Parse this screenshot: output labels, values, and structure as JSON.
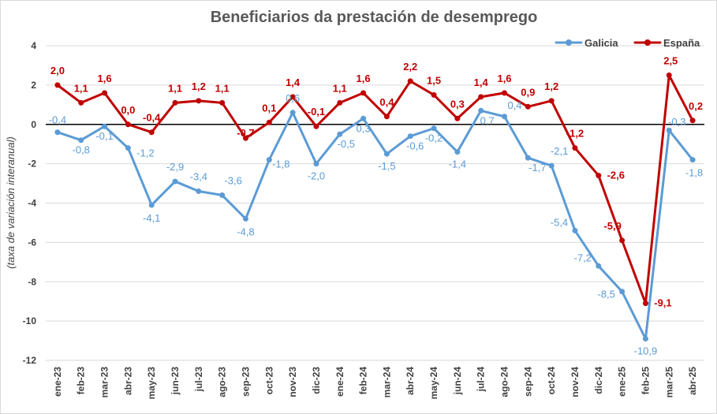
{
  "chart_data": {
    "type": "line",
    "title": "Beneficiarios da prestación de desemprego",
    "ylabel": "(taxa de variación interanual)",
    "xlabel": "",
    "ylim": [
      -12,
      4
    ],
    "yticks": [
      4,
      2,
      0,
      -2,
      -4,
      -6,
      -8,
      -10,
      -12
    ],
    "ytick_labels": [
      "4",
      "2",
      "0",
      "-2",
      "-4",
      "-6",
      "-8",
      "-10",
      "-12"
    ],
    "grid": true,
    "legend_position": "top-right",
    "categories": [
      "ene-23",
      "feb-23",
      "mar-23",
      "abr-23",
      "may-23",
      "jun-23",
      "jul-23",
      "ago-23",
      "sep-23",
      "oct-23",
      "nov-23",
      "dic-23",
      "ene-24",
      "feb-24",
      "mar-24",
      "abr-24",
      "may-24",
      "jun-24",
      "jul-24",
      "ago-24",
      "sep-24",
      "oct-24",
      "nov-24",
      "dic-24",
      "ene-25",
      "feb-25",
      "mar-25",
      "abr-25"
    ],
    "series": [
      {
        "name": "Galicia",
        "color": "#5b9bd5",
        "values": [
          -0.4,
          -0.8,
          -0.1,
          -1.2,
          -4.1,
          -2.9,
          -3.4,
          -3.6,
          -4.8,
          -1.8,
          0.6,
          -2.0,
          -0.5,
          0.3,
          -1.5,
          -0.6,
          -0.2,
          -1.4,
          0.7,
          0.4,
          -1.7,
          -2.1,
          -5.4,
          -7.2,
          -8.5,
          -10.9,
          -0.3,
          -1.8
        ],
        "labels": [
          "-0,4",
          "-0,8",
          "-0,1",
          "-1,2",
          "-4,1",
          "-2,9",
          "-3,4",
          "-3,6",
          "-4,8",
          "-1,8",
          "0,6",
          "-2,0",
          "-0,5",
          "0,3",
          "-1,5",
          "-0,6",
          "-0,2",
          "-1,4",
          "0,7",
          "0,4",
          "-1,7",
          "-2,1",
          "-5,4",
          "-7,2",
          "-8,5",
          "-10,9",
          "-0,3",
          "-1,8"
        ]
      },
      {
        "name": "España",
        "color": "#c00000",
        "values": [
          2.0,
          1.1,
          1.6,
          0.0,
          -0.4,
          1.1,
          1.2,
          1.1,
          -0.7,
          0.1,
          1.4,
          -0.1,
          1.1,
          1.6,
          0.4,
          2.2,
          1.5,
          0.3,
          1.4,
          1.6,
          0.9,
          1.2,
          -1.2,
          -2.6,
          -5.9,
          -9.1,
          2.5,
          0.2
        ],
        "labels": [
          "2,0",
          "1,1",
          "1,6",
          "0,0",
          "-0,4",
          "1,1",
          "1,2",
          "1,1",
          "-0,7",
          "0,1",
          "1,4",
          "-0,1",
          "1,1",
          "1,6",
          "0,4",
          "2,2",
          "1,5",
          "0,3",
          "1,4",
          "1,6",
          "0,9",
          "1,2",
          "-1,2",
          "-2,6",
          "-5,9",
          "-9,1",
          "2,5",
          "0,2"
        ]
      }
    ]
  }
}
